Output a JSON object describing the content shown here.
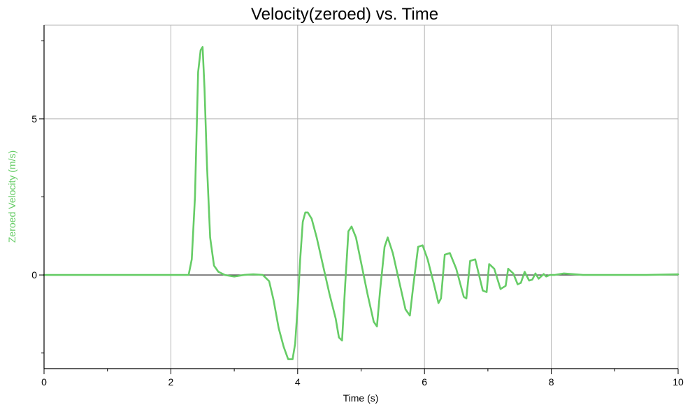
{
  "chart_data": {
    "type": "line",
    "title": "Velocity(zeroed) vs. Time",
    "xlabel": "Time (s)",
    "ylabel": "Zeroed Velocity (m/s)",
    "xlim": [
      0,
      10
    ],
    "ylim": [
      -3,
      8
    ],
    "x_ticks": [
      0,
      2,
      4,
      6,
      8,
      10
    ],
    "x_tick_labels": [
      "0",
      "2",
      "4",
      "6",
      "8",
      "10"
    ],
    "y_ticks": [
      0,
      5
    ],
    "y_tick_labels": [
      "0",
      "5"
    ],
    "grid": true,
    "colors": {
      "series": "#66cc66",
      "zero_line": "#555555",
      "grid": "#b4b4b4",
      "ylabel": "#66cc66"
    },
    "series": [
      {
        "x": [
          0,
          0.5,
          1.0,
          1.5,
          2.0,
          2.28,
          2.33,
          2.38,
          2.43,
          2.47,
          2.5,
          2.53,
          2.57,
          2.62,
          2.68,
          2.75,
          2.85,
          3.0,
          3.15,
          3.3,
          3.45,
          3.55,
          3.62,
          3.7,
          3.78,
          3.85,
          3.92,
          3.96,
          4.0,
          4.04,
          4.08,
          4.12,
          4.16,
          4.22,
          4.3,
          4.4,
          4.5,
          4.6,
          4.65,
          4.7,
          4.75,
          4.8,
          4.85,
          4.92,
          5.0,
          5.1,
          5.2,
          5.25,
          5.3,
          5.37,
          5.42,
          5.5,
          5.6,
          5.7,
          5.77,
          5.82,
          5.9,
          5.97,
          6.05,
          6.15,
          6.22,
          6.26,
          6.32,
          6.4,
          6.5,
          6.62,
          6.66,
          6.72,
          6.8,
          6.92,
          6.98,
          7.02,
          7.1,
          7.2,
          7.28,
          7.32,
          7.4,
          7.47,
          7.52,
          7.58,
          7.65,
          7.7,
          7.75,
          7.8,
          7.88,
          7.92,
          7.98,
          8.05,
          8.2,
          8.5,
          8.7,
          9.0,
          9.5,
          10.0
        ],
        "y": [
          0,
          0,
          0,
          0,
          0,
          0,
          0.5,
          2.5,
          6.5,
          7.2,
          7.3,
          6.0,
          3.5,
          1.2,
          0.3,
          0.1,
          0,
          -0.05,
          0,
          0.02,
          0,
          -0.2,
          -0.8,
          -1.7,
          -2.3,
          -2.7,
          -2.7,
          -2.2,
          -1.0,
          0.5,
          1.7,
          2.0,
          2.0,
          1.8,
          1.2,
          0.3,
          -0.6,
          -1.4,
          -2.0,
          -2.1,
          -0.3,
          1.4,
          1.55,
          1.2,
          0.4,
          -0.6,
          -1.5,
          -1.65,
          -0.5,
          0.9,
          1.2,
          0.7,
          -0.2,
          -1.1,
          -1.3,
          -0.4,
          0.9,
          0.95,
          0.5,
          -0.3,
          -0.9,
          -0.75,
          0.65,
          0.7,
          0.2,
          -0.7,
          -0.75,
          0.45,
          0.5,
          -0.5,
          -0.55,
          0.35,
          0.2,
          -0.45,
          -0.35,
          0.2,
          0.05,
          -0.3,
          -0.25,
          0.1,
          -0.18,
          -0.15,
          0.05,
          -0.12,
          0.03,
          -0.05,
          0,
          0,
          0.05,
          0,
          0,
          0,
          0,
          0.02
        ]
      }
    ]
  }
}
